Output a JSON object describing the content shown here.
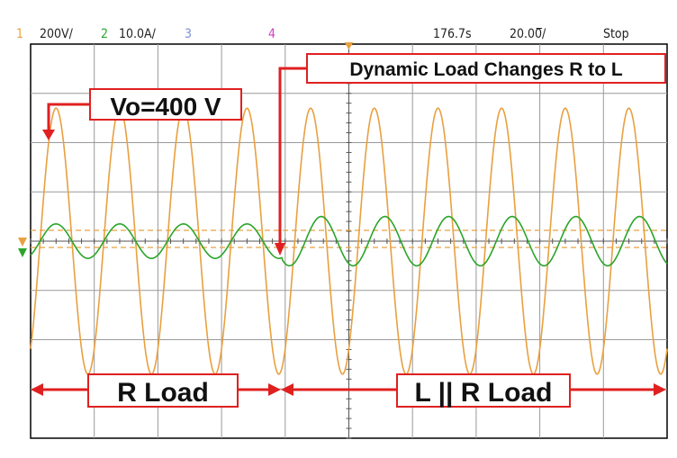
{
  "status_bar": {
    "ch1_number": "1",
    "ch1_scale": "200V/",
    "ch2_number": "2",
    "ch2_scale": "10.0A/",
    "ch3_number": "3",
    "ch4_number": "4",
    "time_position": "176.7s",
    "timebase": "20.00̅/",
    "run_state": "Stop"
  },
  "colors": {
    "ch1": "#e8a040",
    "ch2": "#2aa52a",
    "ch3": "#7a8ed6",
    "ch4": "#d040c0",
    "annotation": "#e02020",
    "grid": "#9a9a9a"
  },
  "annotations": {
    "vo_label": "Vo=400 V",
    "transition_label": "Dynamic Load Changes R to L",
    "r_load_label": "R Load",
    "lr_load_label": "L || R Load"
  },
  "chart_data": {
    "type": "line",
    "x_divisions": 10,
    "y_divisions": 8,
    "transition_div": 3.96,
    "series": [
      {
        "name": "1",
        "channel": 1,
        "unit": "V",
        "volts_per_div": 200,
        "amplitude_div": 2.7,
        "cycles_per_div": 1.0,
        "phase_deg": 0
      },
      {
        "name": "2",
        "channel": 2,
        "unit": "A",
        "amps_per_div": 10.0,
        "before": {
          "amplitude_div": 0.35,
          "phase_deg": 0
        },
        "after": {
          "amplitude_div": 0.5,
          "phase_deg": -60
        }
      }
    ]
  }
}
